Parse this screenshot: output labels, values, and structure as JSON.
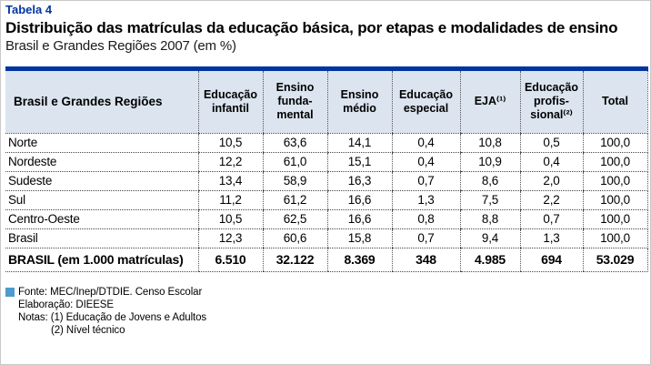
{
  "page": {
    "tag": "Tabela 4",
    "title": "Distribuição das matrículas da educação básica, por etapas e modalidades de ensino",
    "subtitle": "Brasil e Grandes Regiões 2007 (em %)"
  },
  "colors": {
    "accent_blue": "#0035a0",
    "header_bg": "#dbe4ef",
    "source_square": "#4f9bcb"
  },
  "table": {
    "header": [
      "Brasil e Grandes Regiões",
      "Educação\ninfantil",
      "Ensino\nfunda-\nmental",
      "Ensino\nmédio",
      "Educação\nespecial",
      "EJA⁽¹⁾",
      "Educação\nprofis-\nsional⁽²⁾",
      "Total"
    ],
    "rows": [
      {
        "label": "Norte",
        "values": [
          "10,5",
          "63,6",
          "14,1",
          "0,4",
          "10,8",
          "0,5",
          "100,0"
        ]
      },
      {
        "label": "Nordeste",
        "values": [
          "12,2",
          "61,0",
          "15,1",
          "0,4",
          "10,9",
          "0,4",
          "100,0"
        ]
      },
      {
        "label": "Sudeste",
        "values": [
          "13,4",
          "58,9",
          "16,3",
          "0,7",
          "8,6",
          "2,0",
          "100,0"
        ]
      },
      {
        "label": "Sul",
        "values": [
          "11,2",
          "61,2",
          "16,6",
          "1,3",
          "7,5",
          "2,2",
          "100,0"
        ]
      },
      {
        "label": "Centro-Oeste",
        "values": [
          "10,5",
          "62,5",
          "16,6",
          "0,8",
          "8,8",
          "0,7",
          "100,0"
        ]
      },
      {
        "label": "Brasil",
        "values": [
          "12,3",
          "60,6",
          "15,8",
          "0,7",
          "9,4",
          "1,3",
          "100,0"
        ]
      }
    ],
    "total_row": {
      "label": "BRASIL (em 1.000 matrículas)",
      "values": [
        "6.510",
        "32.122",
        "8.369",
        "348",
        "4.985",
        "694",
        "53.029"
      ]
    }
  },
  "footer": {
    "fonte": "Fonte: MEC/Inep/DTDIE. Censo Escolar",
    "elaboracao": "Elaboração: DIEESE",
    "notas_line1": "Notas: (1) Educação de Jovens e Adultos",
    "notas_line2": "(2) Nível técnico"
  }
}
